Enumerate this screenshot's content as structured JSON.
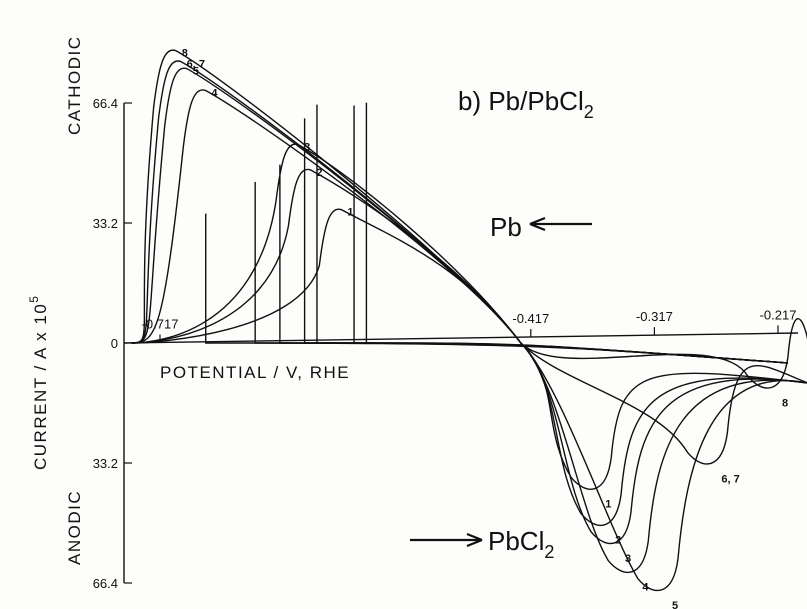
{
  "chart_data": {
    "type": "line",
    "title": "b) Pb/PbCl",
    "title_subscript": "2",
    "xlabel": "POTENTIAL / V, RHE",
    "ylabel": "CURRENT / A x 10",
    "ylabel_superscript": "5",
    "cathodic_label": "CATHODIC",
    "anodic_label": "ANODIC",
    "x_tick_labels": [
      "-0.717",
      "-0.417",
      "-0.317",
      "-0.217"
    ],
    "x_ticks": [
      -0.717,
      -0.417,
      -0.317,
      -0.217
    ],
    "y_tick_labels_cathodic": [
      "66.4",
      "33.2",
      "0"
    ],
    "y_tick_labels_anodic": [
      "33.2",
      "66.4"
    ],
    "ylim": [
      -66.4,
      66.4
    ],
    "xlim": [
      -0.74,
      -0.2
    ],
    "annotations": [
      {
        "text": "Pb",
        "arrow": "left"
      },
      {
        "text": "PbCl",
        "subscript": "2",
        "arrow": "right"
      }
    ],
    "series": [
      {
        "label": "1",
        "cathodic_peak": {
          "x": -0.58,
          "y": 38
        },
        "anodic_peak": {
          "x": -0.36,
          "y": -40
        }
      },
      {
        "label": "2",
        "cathodic_peak": {
          "x": -0.605,
          "y": 49
        },
        "anodic_peak": {
          "x": -0.352,
          "y": -50
        }
      },
      {
        "label": "3",
        "cathodic_peak": {
          "x": -0.615,
          "y": 56
        },
        "anodic_peak": {
          "x": -0.344,
          "y": -55
        }
      },
      {
        "label": "4",
        "cathodic_peak": {
          "x": -0.69,
          "y": 71
        },
        "anodic_peak": {
          "x": -0.33,
          "y": -63
        }
      },
      {
        "label": "5",
        "cathodic_peak": {
          "x": -0.705,
          "y": 77
        },
        "anodic_peak": {
          "x": -0.306,
          "y": -68
        }
      },
      {
        "label": "6, 7",
        "cathodic_peak": {
          "x": -0.71,
          "y": 79
        },
        "anodic_peak": {
          "x": -0.266,
          "y": -33
        }
      },
      {
        "label": "8",
        "cathodic_peak": {
          "x": -0.714,
          "y": 82
        },
        "anodic_peak": {
          "x": -0.217,
          "y": -12
        }
      }
    ]
  }
}
